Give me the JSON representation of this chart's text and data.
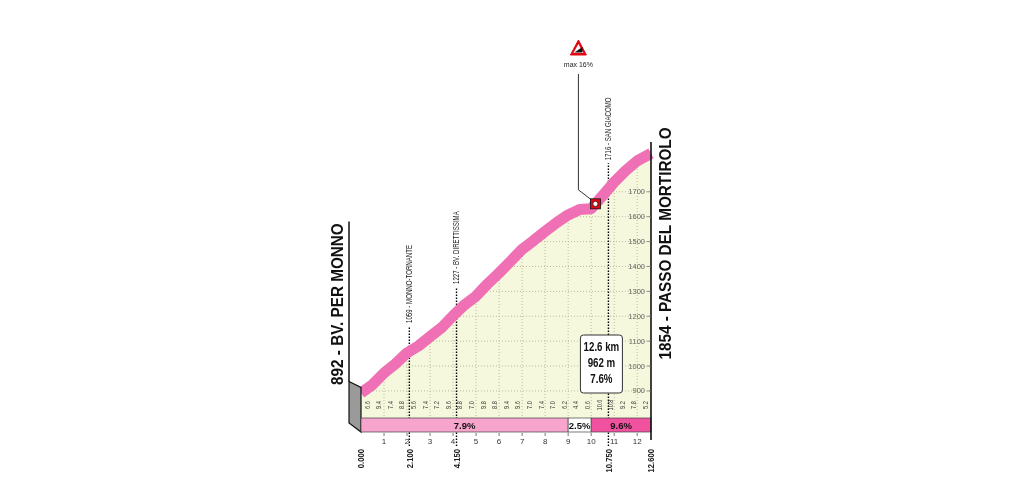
{
  "chart_data": {
    "type": "area",
    "x": [
      0,
      0.5,
      1,
      1.5,
      2,
      2.5,
      3,
      3.5,
      4,
      4.5,
      5,
      5.5,
      6,
      6.5,
      7,
      7.5,
      8,
      8.5,
      9,
      9.5,
      10,
      10.5,
      11,
      11.5,
      12,
      12.6
    ],
    "values": [
      892,
      925,
      972,
      1009,
      1053,
      1081,
      1118,
      1154,
      1202,
      1246,
      1281,
      1330,
      1374,
      1421,
      1469,
      1504,
      1541,
      1576,
      1607,
      1629,
      1632,
      1685,
      1739,
      1785,
      1824,
      1854
    ],
    "color": "#f070b5",
    "xlim": [
      0,
      12.6
    ],
    "xticks": [
      1,
      2,
      3,
      4,
      5,
      6,
      7,
      8,
      9,
      10,
      11,
      12
    ],
    "x2lim": [
      0,
      12.6
    ],
    "x2ticks": [
      {
        "value": 0,
        "label": "0.000"
      },
      {
        "value": 2.1,
        "label": "2.100"
      },
      {
        "value": 4.15,
        "label": "4.150"
      },
      {
        "value": 10.75,
        "label": "10.750"
      },
      {
        "value": 12.6,
        "label": "12.600"
      }
    ],
    "ylim": [
      735,
      1900
    ],
    "yticks": [
      900,
      1000,
      1100,
      1200,
      1300,
      1400,
      1500,
      1600,
      1700
    ],
    "grid": true,
    "ref_lines": [
      {
        "axis": "x",
        "value": 2.1,
        "label": "1059 - MONNO-TORNANTE",
        "color": "#000000",
        "line_style": "dotted"
      },
      {
        "axis": "x",
        "value": 4.15,
        "label": "1227 - BV. DIRETTISSIMA",
        "color": "#000000",
        "line_style": "dotted"
      },
      {
        "axis": "x",
        "value": 10.75,
        "label": "1716 - SAN GIACOMO",
        "color": "#000000",
        "line_style": "dotted"
      }
    ],
    "bands": [
      {
        "axis": "x",
        "from": 0,
        "to": 9,
        "label": "7.9%",
        "color": "#f8a5cd"
      },
      {
        "axis": "x",
        "from": 9,
        "to": 10,
        "label": "2.5%",
        "color": "#ffffff"
      },
      {
        "axis": "x",
        "from": 10,
        "to": 12.6,
        "label": "9.6%",
        "color": "#f0529f"
      }
    ],
    "annotations": [
      "6.6",
      "9.4",
      "7.4",
      "8.8",
      "5.6",
      "7.4",
      "7.2",
      "9.6",
      "8.8",
      "7.0",
      "9.8",
      "8.8",
      "9.4",
      "9.6",
      "7.0",
      "7.4",
      "7.0",
      "6.2",
      "4.4",
      "0.6",
      "10.6",
      "10.8",
      "9.2",
      "7.8",
      "5.2",
      {
        "text": "892 - BV. PER MONNO",
        "x": 0,
        "y": 892
      },
      {
        "text": "1854 - PASSO DEL MORTIROLO",
        "x": 12.6,
        "y": 1854
      },
      "max 16%",
      "12.6 km",
      "962 m",
      "7.6%"
    ]
  }
}
